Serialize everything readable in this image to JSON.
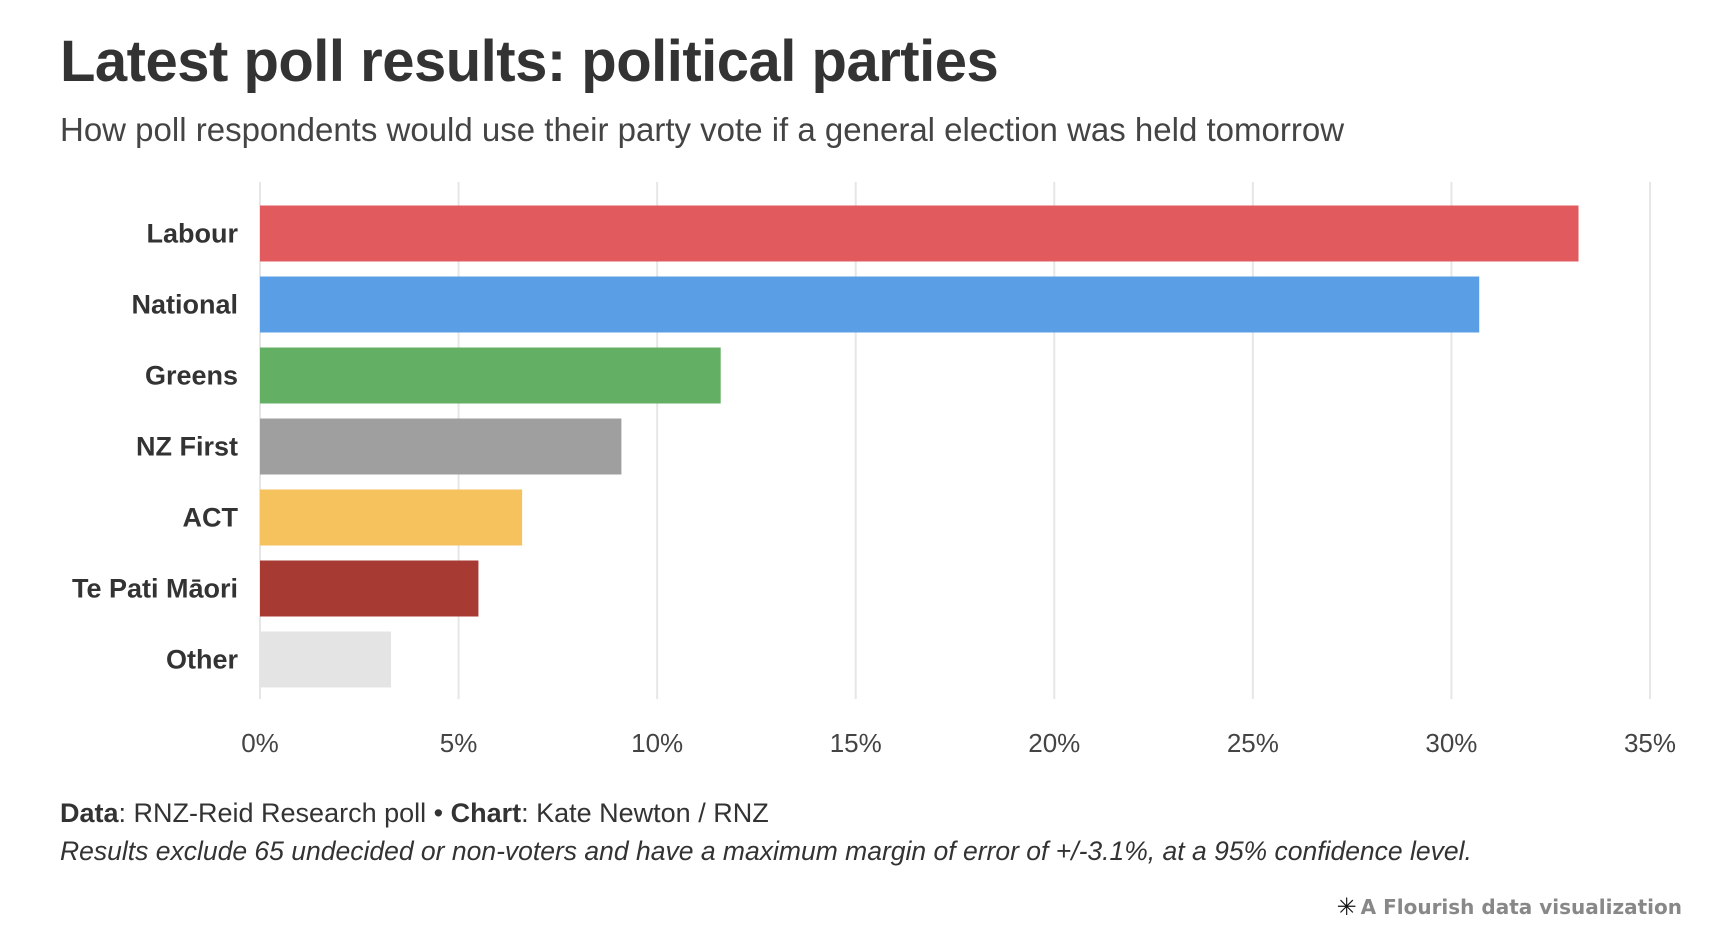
{
  "title": "Latest poll results: political parties",
  "subtitle": "How poll respondents would use their party vote if a general election was held tomorrow",
  "footer": {
    "data_label": "Data",
    "data_text": ": RNZ-Reid Research poll • ",
    "chart_label": "Chart",
    "chart_text": ": Kate Newton / RNZ",
    "note": "Results exclude 65 undecided or non-voters and have a maximum margin of error of +/-3.1%, at a 95% confidence level."
  },
  "credit": {
    "icon": "flourish-star-icon",
    "text": "A Flourish data visualization"
  },
  "chart_data": {
    "type": "bar",
    "orientation": "horizontal",
    "categories": [
      "Labour",
      "National",
      "Greens",
      "NZ First",
      "ACT",
      "Te Pati Māori",
      "Other"
    ],
    "values": [
      33.2,
      30.7,
      11.6,
      9.1,
      6.6,
      5.5,
      3.3
    ],
    "colors": [
      "#e05a5e",
      "#5a9fe6",
      "#63b065",
      "#9f9f9f",
      "#f5c25e",
      "#a73a33",
      "#e4e4e4"
    ],
    "xlim": [
      0,
      35
    ],
    "ticks": [
      0,
      5,
      10,
      15,
      20,
      25,
      30,
      35
    ],
    "tick_labels": [
      "0%",
      "5%",
      "10%",
      "15%",
      "20%",
      "25%",
      "30%",
      "35%"
    ],
    "grid": true,
    "gridline_color": "#e6e6e6",
    "xlabel": "",
    "ylabel": ""
  }
}
